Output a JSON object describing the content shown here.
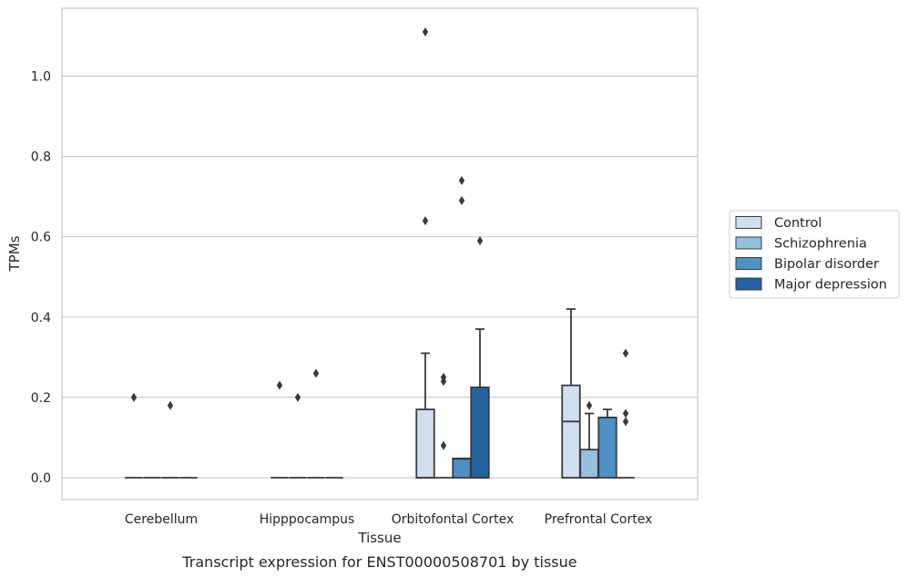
{
  "chart_data": {
    "type": "box",
    "caption": "Transcript expression for ENST00000508701 by tissue",
    "xlabel": "Tissue",
    "ylabel": "TPMs",
    "ylim": [
      -0.055,
      1.17
    ],
    "yticks": [
      "0.0",
      "0.2",
      "0.4",
      "0.6",
      "0.8",
      "1.0"
    ],
    "categories": [
      "Cerebellum",
      "Hipppocampus",
      "Orbitofontal Cortex",
      "Prefrontal Cortex"
    ],
    "grid": true,
    "legend_position": "right",
    "colors": [
      "#cfdff0",
      "#93c1de",
      "#4e91c4",
      "#2562a0"
    ],
    "series": [
      {
        "name": "Control",
        "boxes": [
          {
            "q1": 0,
            "median": 0,
            "q3": 0,
            "whisker_low": 0,
            "whisker_high": 0,
            "outliers": [
              0.2
            ]
          },
          {
            "q1": 0,
            "median": 0,
            "q3": 0,
            "whisker_low": 0,
            "whisker_high": 0,
            "outliers": [
              0.23
            ]
          },
          {
            "q1": 0,
            "median": 0,
            "q3": 0.17,
            "whisker_low": 0,
            "whisker_high": 0.31,
            "outliers": [
              1.11,
              0.64
            ]
          },
          {
            "q1": 0,
            "median": 0.14,
            "q3": 0.23,
            "whisker_low": 0,
            "whisker_high": 0.42,
            "outliers": []
          }
        ]
      },
      {
        "name": "Schizophrenia",
        "boxes": [
          {
            "q1": 0,
            "median": 0,
            "q3": 0,
            "whisker_low": 0,
            "whisker_high": 0,
            "outliers": []
          },
          {
            "q1": 0,
            "median": 0,
            "q3": 0,
            "whisker_low": 0,
            "whisker_high": 0,
            "outliers": [
              0.2
            ]
          },
          {
            "q1": 0,
            "median": 0,
            "q3": 0,
            "whisker_low": 0,
            "whisker_high": 0,
            "outliers": [
              0.25,
              0.24,
              0.08
            ]
          },
          {
            "q1": 0,
            "median": 0,
            "q3": 0.07,
            "whisker_low": 0,
            "whisker_high": 0.16,
            "outliers": [
              0.18
            ]
          }
        ]
      },
      {
        "name": "Bipolar disorder",
        "boxes": [
          {
            "q1": 0,
            "median": 0,
            "q3": 0,
            "whisker_low": 0,
            "whisker_high": 0,
            "outliers": [
              0.18
            ]
          },
          {
            "q1": 0,
            "median": 0,
            "q3": 0,
            "whisker_low": 0,
            "whisker_high": 0,
            "outliers": [
              0.26
            ]
          },
          {
            "q1": 0,
            "median": 0.047,
            "q3": 0.048,
            "whisker_low": 0,
            "whisker_high": 0.048,
            "outliers": [
              0.74,
              0.69
            ]
          },
          {
            "q1": 0,
            "median": 0.15,
            "q3": 0.15,
            "whisker_low": 0,
            "whisker_high": 0.17,
            "outliers": []
          }
        ]
      },
      {
        "name": "Major depression",
        "boxes": [
          {
            "q1": 0,
            "median": 0,
            "q3": 0,
            "whisker_low": 0,
            "whisker_high": 0,
            "outliers": []
          },
          {
            "q1": 0,
            "median": 0,
            "q3": 0,
            "whisker_low": 0,
            "whisker_high": 0,
            "outliers": []
          },
          {
            "q1": 0,
            "median": 0,
            "q3": 0.225,
            "whisker_low": 0,
            "whisker_high": 0.37,
            "outliers": [
              0.59
            ]
          },
          {
            "q1": 0,
            "median": 0,
            "q3": 0,
            "whisker_low": 0,
            "whisker_high": 0,
            "outliers": [
              0.31,
              0.16,
              0.14
            ]
          }
        ]
      }
    ]
  }
}
